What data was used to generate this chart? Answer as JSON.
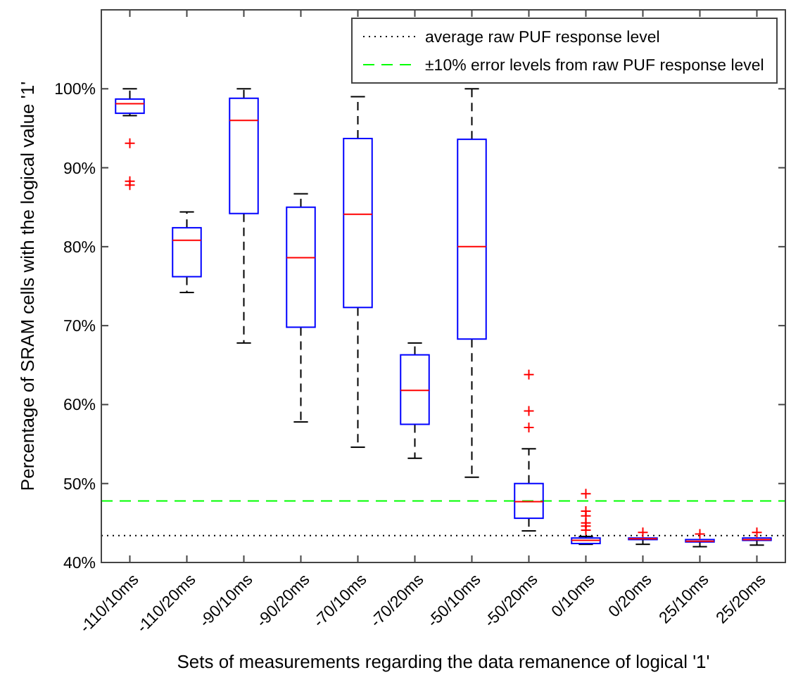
{
  "chart_data": {
    "type": "box",
    "xlabel": "Sets of measurements regarding the data remanence of logical '1'",
    "ylabel": "Percentage of SRAM cells with the logical value '1'",
    "categories": [
      "-110/10ms",
      "-110/20ms",
      "-90/10ms",
      "-90/20ms",
      "-70/10ms",
      "-70/20ms",
      "-50/10ms",
      "-50/20ms",
      "0/10ms",
      "0/20ms",
      "25/10ms",
      "25/20ms"
    ],
    "boxes": [
      {
        "low": 96.6,
        "q1": 96.9,
        "median": 98.1,
        "q3": 98.7,
        "high": 100,
        "outliers": [
          93.1,
          88.3,
          87.8
        ]
      },
      {
        "low": 74.2,
        "q1": 76.2,
        "median": 80.8,
        "q3": 82.4,
        "high": 84.4
      },
      {
        "low": 67.8,
        "q1": 84.2,
        "median": 96.0,
        "q3": 98.8,
        "high": 100
      },
      {
        "low": 57.8,
        "q1": 69.8,
        "median": 78.6,
        "q3": 85.0,
        "high": 86.7
      },
      {
        "low": 54.6,
        "q1": 72.3,
        "median": 84.1,
        "q3": 93.7,
        "high": 99.0
      },
      {
        "low": 53.2,
        "q1": 57.5,
        "median": 61.8,
        "q3": 66.3,
        "high": 67.8
      },
      {
        "low": 50.8,
        "q1": 68.3,
        "median": 80.0,
        "q3": 93.6,
        "high": 100
      },
      {
        "low": 44.0,
        "q1": 45.6,
        "median": 47.7,
        "q3": 50.0,
        "high": 54.4,
        "outliers": [
          63.8,
          59.2,
          57.1
        ]
      },
      {
        "low": 42.3,
        "q1": 42.4,
        "median": 42.8,
        "q3": 43.1,
        "high": 43.3,
        "outliers": [
          48.7,
          46.5,
          45.9,
          45.0,
          44.6,
          44.1
        ]
      },
      {
        "low": 42.3,
        "q1": 42.9,
        "median": 43.0,
        "q3": 43.1,
        "high": 43.1,
        "outliers": [
          43.8
        ]
      },
      {
        "low": 42.0,
        "q1": 42.6,
        "median": 42.7,
        "q3": 42.9,
        "high": 42.9,
        "outliers": [
          43.6
        ]
      },
      {
        "low": 42.2,
        "q1": 42.8,
        "median": 42.9,
        "q3": 43.1,
        "high": 43.1,
        "outliers": [
          43.8
        ]
      }
    ],
    "color": "#0000ff",
    "marker": "cross",
    "ylim": [
      40,
      110
    ],
    "yticks": [
      {
        "value": 40,
        "label": "40%"
      },
      {
        "value": 50,
        "label": "50%"
      },
      {
        "value": 60,
        "label": "60%"
      },
      {
        "value": 70,
        "label": "70%"
      },
      {
        "value": 80,
        "label": "80%"
      },
      {
        "value": 90,
        "label": "90%"
      },
      {
        "value": 100,
        "label": "100%"
      }
    ],
    "ref_lines": [
      {
        "axis": "y",
        "value": 43.4,
        "label": "average raw PUF response level",
        "color": "#000000",
        "line_style": "dotted"
      },
      {
        "axis": "y",
        "value": 47.8,
        "label": "±10% error levels from raw PUF response level",
        "color": "#00ff00",
        "line_style": "dashed"
      }
    ],
    "grid": false,
    "legend": "top right"
  }
}
